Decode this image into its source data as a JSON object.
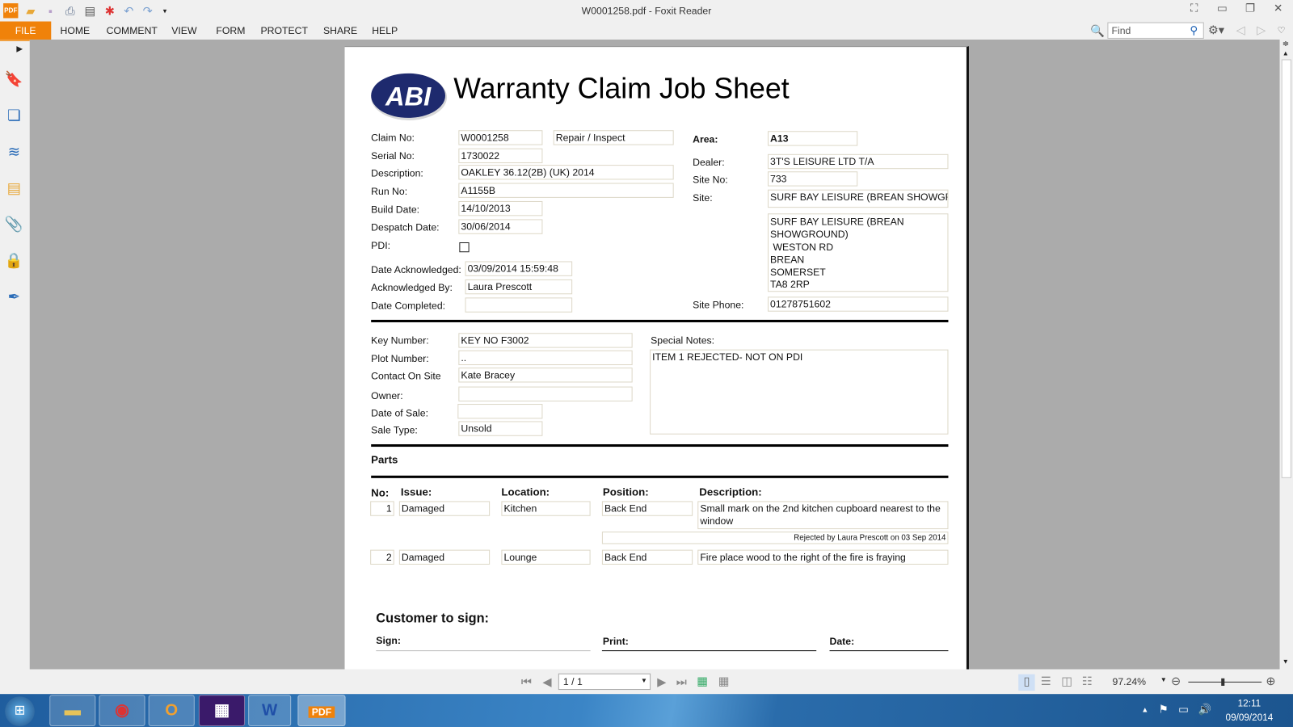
{
  "window": {
    "title": "W0001258.pdf - Foxit Reader"
  },
  "menu": {
    "file": "FILE",
    "items": [
      "HOME",
      "COMMENT",
      "VIEW",
      "FORM",
      "PROTECT",
      "SHARE",
      "HELP"
    ]
  },
  "find": {
    "placeholder": "Find"
  },
  "doc": {
    "logo_text": "ABI",
    "title": "Warranty Claim Job Sheet",
    "claim_no": {
      "label": "Claim No:",
      "value": "W0001258",
      "type": "Repair / Inspect"
    },
    "serial_no": {
      "label": "Serial No:",
      "value": "1730022"
    },
    "description": {
      "label": "Description:",
      "value": "OAKLEY 36.12(2B) (UK) 2014"
    },
    "run_no": {
      "label": "Run No:",
      "value": "A1155B"
    },
    "build_date": {
      "label": "Build Date:",
      "value": "14/10/2013"
    },
    "despatch_date": {
      "label": "Despatch Date:",
      "value": "30/06/2014"
    },
    "pdi": {
      "label": "PDI:",
      "checked": false
    },
    "date_ack": {
      "label": "Date Acknowledged:",
      "value": "03/09/2014 15:59:48"
    },
    "ack_by": {
      "label": "Acknowledged By:",
      "value": "Laura Prescott"
    },
    "date_completed": {
      "label": "Date Completed:",
      "value": ""
    },
    "area": {
      "label": "Area:",
      "value": "A13"
    },
    "dealer": {
      "label": "Dealer:",
      "value": "3T'S LEISURE LTD T/A"
    },
    "site_no": {
      "label": "Site No:",
      "value": "733"
    },
    "site": {
      "label": "Site:",
      "value": "SURF BAY LEISURE (BREAN SHOWGROUN"
    },
    "address": [
      "SURF BAY LEISURE (BREAN",
      "SHOWGROUND)",
      " WESTON RD",
      "BREAN",
      "SOMERSET",
      "TA8 2RP"
    ],
    "site_phone": {
      "label": "Site Phone:",
      "value": "01278751602"
    },
    "key_number": {
      "label": "Key Number:",
      "value": "KEY NO F3002"
    },
    "plot_number": {
      "label": "Plot Number:",
      "value": ".."
    },
    "contact": {
      "label": "Contact On Site",
      "value": "Kate Bracey"
    },
    "owner": {
      "label": "Owner:",
      "value": ""
    },
    "date_of_sale": {
      "label": "Date of Sale:",
      "value": ""
    },
    "sale_type": {
      "label": "Sale Type:",
      "value": "Unsold"
    },
    "special_notes": {
      "label": "Special Notes:",
      "value": "ITEM 1 REJECTED- NOT ON PDI"
    },
    "parts": {
      "heading": "Parts",
      "headers": [
        "No:",
        "Issue:",
        "Location:",
        "Position:",
        "Description:"
      ],
      "rows": [
        {
          "no": "1",
          "issue": "Damaged",
          "location": "Kitchen",
          "position": "Back End",
          "description": "Small mark on the 2nd kitchen cupboard nearest to the window",
          "note": "Rejected by Laura Prescott on 03 Sep 2014"
        },
        {
          "no": "2",
          "issue": "Damaged",
          "location": "Lounge",
          "position": "Back End",
          "description": "Fire place wood to the right of the fire is fraying"
        }
      ]
    },
    "sign": {
      "heading": "Customer to sign:",
      "sign": "Sign:",
      "print": "Print:",
      "date": "Date:"
    }
  },
  "status": {
    "page": "1 / 1",
    "zoom": "97.24%",
    "zoom_slider_fraction": 0.47
  },
  "taskbar": {
    "time": "12:11",
    "date": "09/09/2014",
    "apps": [
      "explorer-icon",
      "chrome-icon",
      "outlook-icon",
      "app-icon",
      "word-icon",
      "foxit-icon"
    ]
  },
  "colors": {
    "accent": "#f0820a",
    "logo": "#1e2a6e"
  }
}
